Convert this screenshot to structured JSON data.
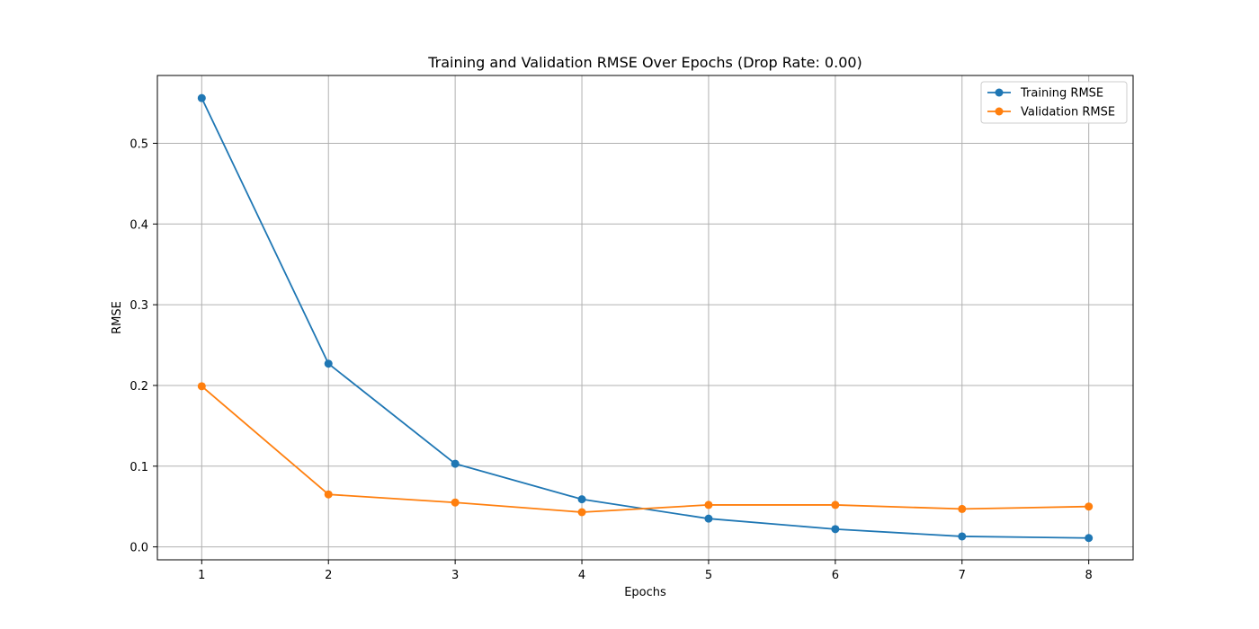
{
  "chart_data": {
    "type": "line",
    "title": "Training and Validation RMSE Over Epochs (Drop Rate: 0.00)",
    "xlabel": "Epochs",
    "ylabel": "RMSE",
    "x": [
      1,
      2,
      3,
      4,
      5,
      6,
      7,
      8
    ],
    "xlim": [
      0.65,
      8.35
    ],
    "ylim": [
      -0.016,
      0.584
    ],
    "xticks": [
      "1",
      "2",
      "3",
      "4",
      "5",
      "6",
      "7",
      "8"
    ],
    "yticks": [
      {
        "value": 0.0,
        "label": "0.0"
      },
      {
        "value": 0.1,
        "label": "0.1"
      },
      {
        "value": 0.2,
        "label": "0.2"
      },
      {
        "value": 0.3,
        "label": "0.3"
      },
      {
        "value": 0.4,
        "label": "0.4"
      },
      {
        "value": 0.5,
        "label": "0.5"
      }
    ],
    "grid": true,
    "legend_position": "top-right",
    "series": [
      {
        "name": "Training RMSE",
        "color": "#1f77b4",
        "marker": "circle",
        "values": [
          0.556,
          0.227,
          0.103,
          0.059,
          0.035,
          0.022,
          0.013,
          0.011
        ]
      },
      {
        "name": "Validation RMSE",
        "color": "#ff7f0e",
        "marker": "circle",
        "values": [
          0.199,
          0.065,
          0.055,
          0.043,
          0.052,
          0.052,
          0.047,
          0.05
        ]
      }
    ]
  }
}
